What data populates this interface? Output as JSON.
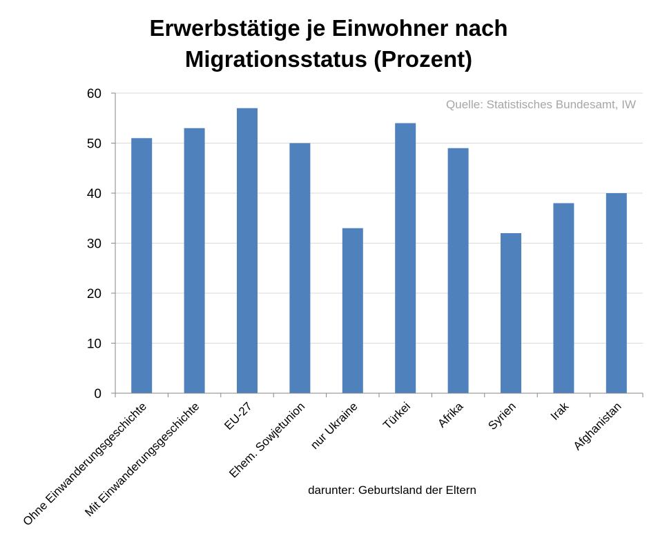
{
  "chart_data": {
    "type": "bar",
    "title_lines": [
      "Erwerbstätige je Einwohner nach",
      "Migrationsstatus (Prozent)"
    ],
    "source": "Quelle: Statistisches Bundesamt, IW",
    "group_label": "darunter: Geburtsland der Eltern",
    "categories": [
      "Ohne Einwanderungsgeschichte",
      "Mit Einwanderungsgeschichte",
      "EU-27",
      "Ehem. Sowjetunion",
      "nur Ukraine",
      "Türkei",
      "Afrika",
      "Syrien",
      "Irak",
      "Afghanistan"
    ],
    "values": [
      51,
      53,
      57,
      50,
      33,
      54,
      49,
      32,
      38,
      40
    ],
    "ylim": [
      0,
      60
    ],
    "yticks": [
      0,
      10,
      20,
      30,
      40,
      50,
      60
    ],
    "grid": true,
    "legend": "none",
    "bar_color": "#4f81bd"
  }
}
